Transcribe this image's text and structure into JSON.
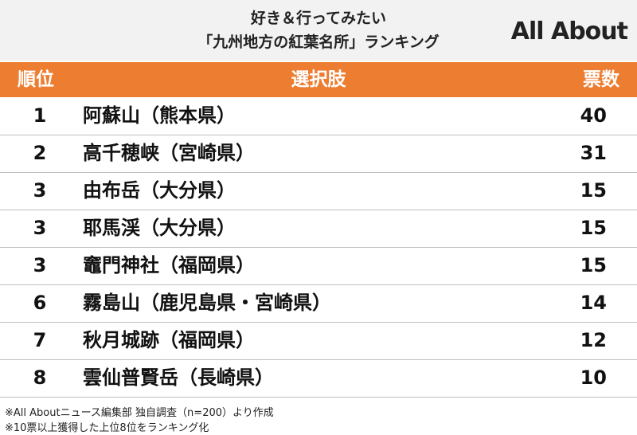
{
  "header": {
    "title_lines": [
      "好き＆行ってみたい",
      "「九州地方の紅葉名所」ランキング"
    ],
    "logo": "All About"
  },
  "table": {
    "columns": [
      "順位",
      "選択肢",
      "票数"
    ],
    "rows": [
      [
        1,
        "阿蘇山（熊本県）",
        40
      ],
      [
        2,
        "高千穂峡（宮崎県）",
        31
      ],
      [
        3,
        "由布岳（大分県）",
        15
      ],
      [
        3,
        "耶馬渓（大分県）",
        15
      ],
      [
        3,
        "竈門神社（福岡県）",
        15
      ],
      [
        6,
        "霧島山（鹿児島県・宮崎県）",
        14
      ],
      [
        7,
        "秋月城跡（福岡県）",
        12
      ],
      [
        8,
        "雲仙普賢岳（長崎県）",
        10
      ]
    ]
  },
  "notes": [
    "※All Aboutニュース編集部 独自調査（n=200）より作成",
    "※10票以上獲得した上位8位をランキング化"
  ]
}
